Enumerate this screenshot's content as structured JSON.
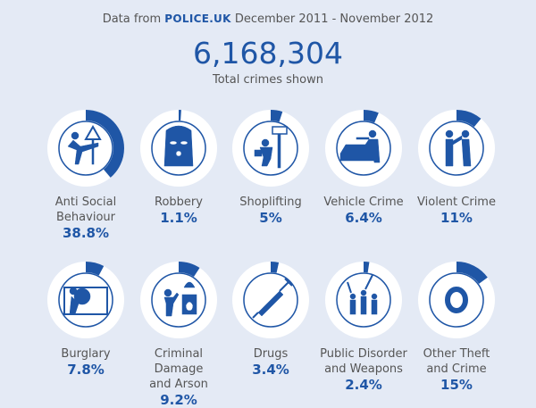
{
  "header": {
    "source_prefix": "Data from",
    "source_brand": "POLICE.UK",
    "period": "December 2011 - November 2012",
    "total": "6,168,304",
    "total_label": "Total crimes shown"
  },
  "colors": {
    "accent": "#1f56a6",
    "ring": "#ffffff",
    "background": "#e4eaf5"
  },
  "chart_data": {
    "type": "donut-gauges",
    "categories": [
      "Anti Social Behaviour",
      "Robbery",
      "Shoplifting",
      "Vehicle Crime",
      "Violent Crime",
      "Burglary",
      "Criminal Damage and Arson",
      "Drugs",
      "Public Disorder and Weapons",
      "Other Theft and Crime"
    ],
    "values": [
      38.8,
      1.1,
      5,
      6.4,
      11,
      7.8,
      9.2,
      3.4,
      2.4,
      15
    ],
    "unit": "%"
  },
  "items": [
    {
      "line1": "Anti Social",
      "line2": "Behaviour",
      "pct": "38.8%",
      "value": 38.8,
      "icon": "kicking-person-icon"
    },
    {
      "line1": "Robbery",
      "line2": "",
      "pct": "1.1%",
      "value": 1.1,
      "icon": "balaclava-icon"
    },
    {
      "line1": "Shoplifting",
      "line2": "",
      "pct": "5%",
      "value": 5,
      "icon": "shoplifter-icon"
    },
    {
      "line1": "Vehicle Crime",
      "line2": "",
      "pct": "6.4%",
      "value": 6.4,
      "icon": "car-break-in-icon"
    },
    {
      "line1": "Violent Crime",
      "line2": "",
      "pct": "11%",
      "value": 11,
      "icon": "fighting-people-icon"
    },
    {
      "line1": "Burglary",
      "line2": "",
      "pct": "7.8%",
      "value": 7.8,
      "icon": "burglar-icon"
    },
    {
      "line1": "Criminal Damage",
      "line2": "and Arson",
      "pct": "9.2%",
      "value": 9.2,
      "icon": "arson-icon"
    },
    {
      "line1": "Drugs",
      "line2": "",
      "pct": "3.4%",
      "value": 3.4,
      "icon": "syringe-icon"
    },
    {
      "line1": "Public Disorder",
      "line2": "and Weapons",
      "pct": "2.4%",
      "value": 2.4,
      "icon": "weapons-crowd-icon"
    },
    {
      "line1": "Other Theft",
      "line2": "and Crime",
      "pct": "15%",
      "value": 15,
      "icon": "other-crime-icon"
    }
  ]
}
